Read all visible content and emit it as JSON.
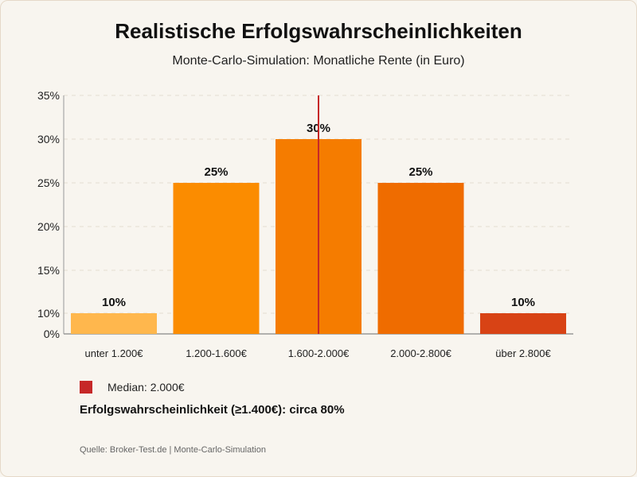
{
  "chart_data": {
    "type": "bar",
    "title": "Realistische Erfolgswahrscheinlichkeiten",
    "subtitle": "Monte-Carlo-Simulation: Monatliche Rente (in Euro)",
    "categories": [
      "unter 1.200€",
      "1.200-1.600€",
      "1.600-2.000€",
      "2.000-2.800€",
      "über 2.800€"
    ],
    "values": [
      10,
      25,
      30,
      25,
      10
    ],
    "value_labels": [
      "10%",
      "25%",
      "30%",
      "25%",
      "10%"
    ],
    "bar_colors": [
      "#ffb74d",
      "#fb8c00",
      "#f57c00",
      "#ef6c00",
      "#d84315"
    ],
    "y_ticks": [
      {
        "value": 0,
        "label": "0%"
      },
      {
        "value": 10,
        "label": "10%"
      },
      {
        "value": 15,
        "label": "15%"
      },
      {
        "value": 20,
        "label": "20%"
      },
      {
        "value": 25,
        "label": "25%"
      },
      {
        "value": 30,
        "label": "30%"
      },
      {
        "value": 35,
        "label": "35%"
      }
    ],
    "ylim": [
      0,
      35
    ],
    "grid": true,
    "median_line": {
      "category_index": 2,
      "color": "#c62828"
    },
    "legend": {
      "label": "Median: 2.000€",
      "color": "#c62828",
      "placement": "bottom-left"
    }
  },
  "summary": "Erfolgswahrscheinlichkeit (≥1.400€): circa 80%",
  "source": "Quelle: Broker-Test.de | Monte-Carlo-Simulation"
}
